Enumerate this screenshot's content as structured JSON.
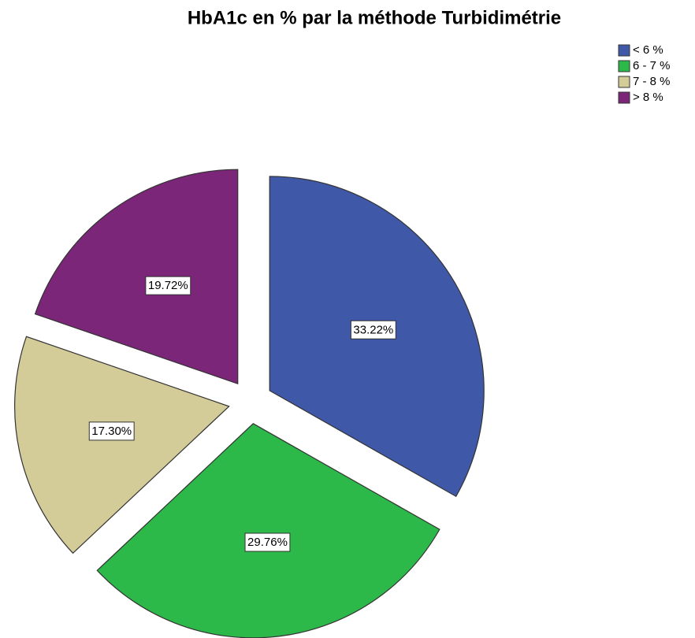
{
  "chart_data": {
    "type": "pie",
    "title": "HbA1c en % par la méthode Turbidimétrie",
    "categories": [
      "< 6 %",
      "6 - 7 %",
      "7 - 8 %",
      "> 8 %"
    ],
    "values": [
      33.22,
      29.76,
      17.3,
      19.72
    ],
    "value_labels": [
      "33.22%",
      "29.76%",
      "17.30%",
      "19.72%"
    ],
    "colors": [
      "#3f58a8",
      "#2db84a",
      "#d4cc98",
      "#7b2678"
    ],
    "legend": "top-right"
  }
}
